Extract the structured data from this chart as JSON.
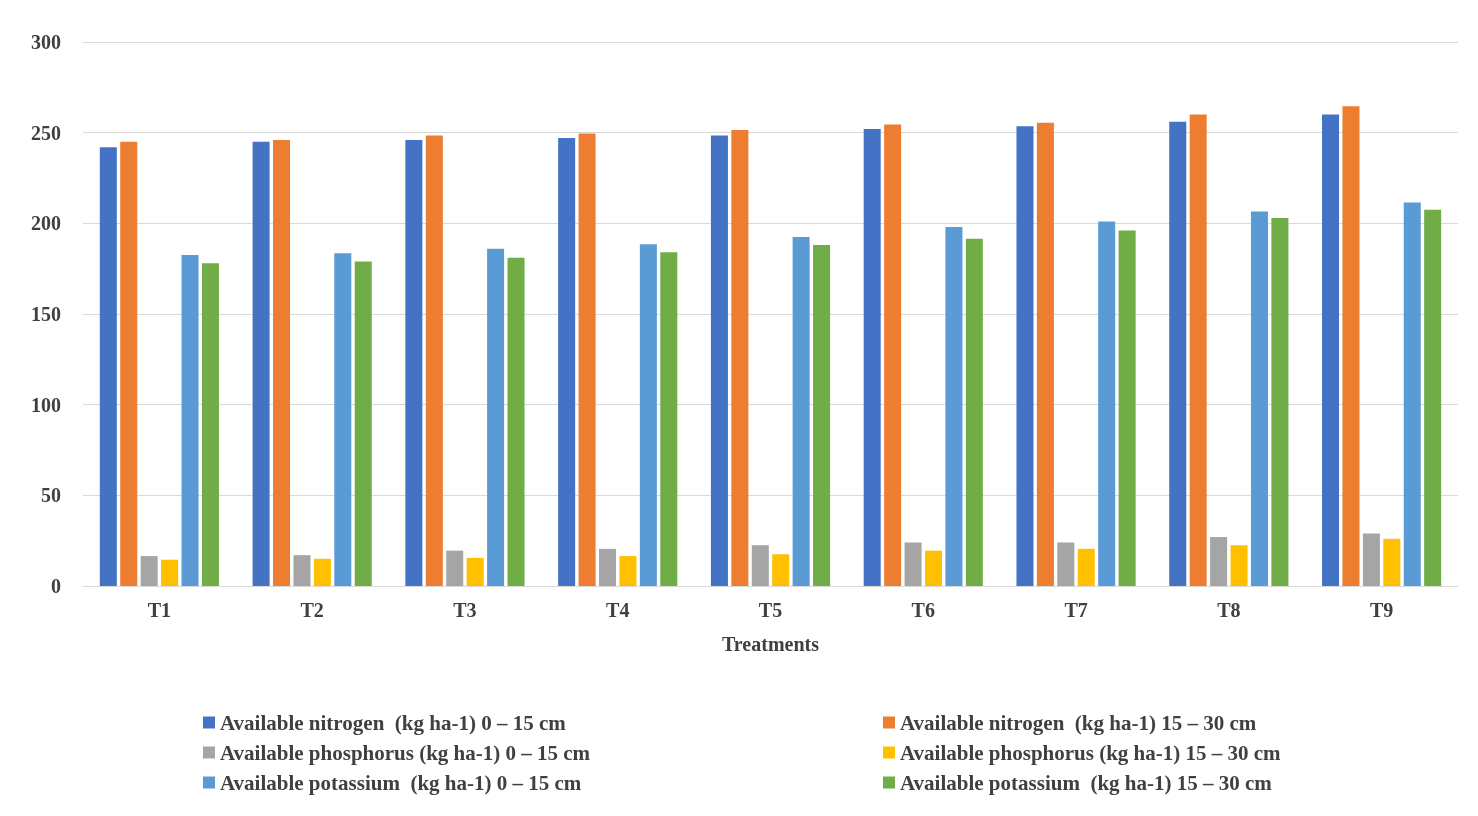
{
  "chart_data": {
    "type": "bar",
    "xlabel": "Treatments",
    "categories": [
      "T1",
      "T2",
      "T3",
      "T4",
      "T5",
      "T6",
      "T7",
      "T8",
      "T9"
    ],
    "series": [
      {
        "name": "Available nitrogen  (kg ha-1) 0 – 15 cm",
        "color": "#4472c4",
        "values": [
          242,
          245,
          246,
          247,
          248.5,
          252,
          253.5,
          256,
          260
        ]
      },
      {
        "name": "Available nitrogen  (kg ha-1) 15 – 30 cm",
        "color": "#ed7d31",
        "values": [
          245,
          246,
          248.5,
          249.5,
          251.5,
          254.5,
          255.5,
          260,
          264.5
        ]
      },
      {
        "name": "Available phosphorus (kg ha-1) 0 – 15 cm",
        "color": "#a5a5a5",
        "values": [
          16.5,
          17,
          19.5,
          20.5,
          22.5,
          24,
          24,
          27,
          29
        ]
      },
      {
        "name": "Available phosphorus (kg ha-1) 15 – 30 cm",
        "color": "#ffc000",
        "values": [
          14.5,
          15,
          15.5,
          16.5,
          17.5,
          19.5,
          20.5,
          22.5,
          26
        ]
      },
      {
        "name": "Available potassium  (kg ha-1) 0 – 15 cm",
        "color": "#5b9bd5",
        "values": [
          182.5,
          183.5,
          186,
          188.5,
          192.5,
          198,
          201,
          206.5,
          211.5
        ]
      },
      {
        "name": "Available potassium  (kg ha-1) 15 – 30 cm",
        "color": "#70ad47",
        "values": [
          178,
          179,
          181,
          184,
          188,
          191.5,
          196,
          203,
          207.5
        ]
      }
    ],
    "ylim": [
      0,
      300
    ],
    "yticks": [
      0,
      50,
      100,
      150,
      200,
      250,
      300
    ],
    "grid": "y",
    "legend": "bottom"
  }
}
